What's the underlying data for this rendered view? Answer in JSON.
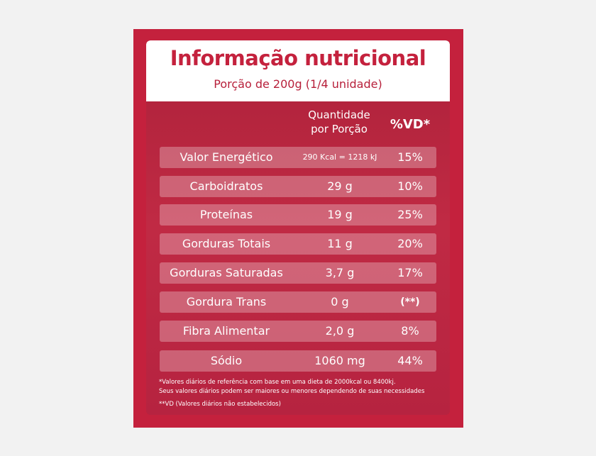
{
  "header": {
    "title": "Informação nutricional",
    "subtitle": "Porção de 200g (1/4 unidade)"
  },
  "columns": {
    "qty_line1": "Quantidade",
    "qty_line2": "por Porção",
    "vd": "%VD*"
  },
  "rows": [
    {
      "name": "Valor Energético",
      "qty": "290 Kcal = 1218 kJ",
      "vd": "15%"
    },
    {
      "name": "Carboidratos",
      "qty": "29 g",
      "vd": "10%"
    },
    {
      "name": "Proteínas",
      "qty": "19 g",
      "vd": "25%"
    },
    {
      "name": "Gorduras Totais",
      "qty": "11 g",
      "vd": "20%"
    },
    {
      "name": "Gorduras Saturadas",
      "qty": "3,7 g",
      "vd": "17%"
    },
    {
      "name": "Gordura Trans",
      "qty": "0 g",
      "vd": "(**)"
    },
    {
      "name": "Fibra Alimentar",
      "qty": "2,0 g",
      "vd": "8%"
    },
    {
      "name": "Sódio",
      "qty": "1060 mg",
      "vd": "44%"
    }
  ],
  "footnotes": {
    "line1": "*Valores diários de referência com base em uma dieta de 2000kcal ou 8400kj.",
    "line2": "Seus valores diários podem ser maiores ou menores dependendo de suas necessidades",
    "line3": "**VD (Valores diários não estabelecidos)"
  },
  "colors": {
    "brand_red": "#c4213d",
    "background": "#f2f2f2",
    "header_bg": "#ffffff"
  }
}
